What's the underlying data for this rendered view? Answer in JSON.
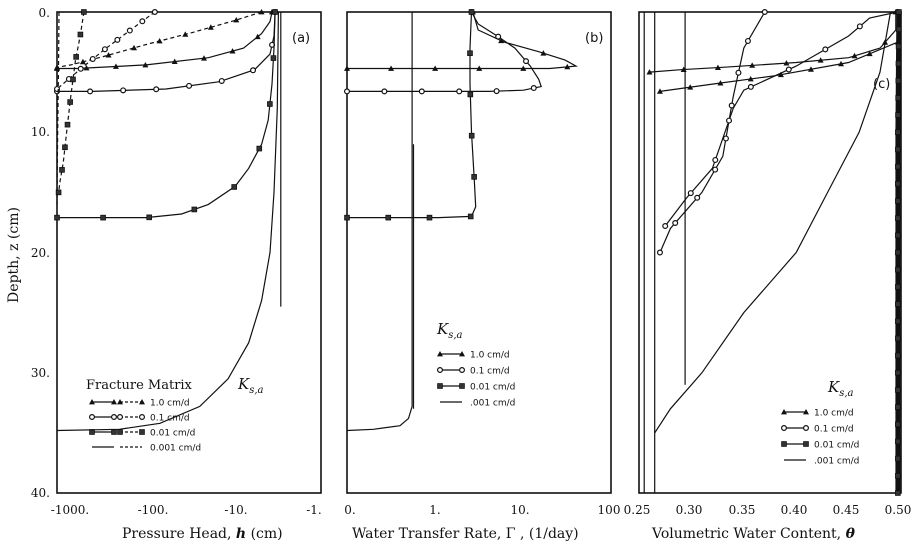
{
  "figure": {
    "y_axis_label": "Depth, z (cm)",
    "y_ticks": [
      "0.",
      "10.",
      "20.",
      "30.",
      "40."
    ],
    "legend_ks": "K",
    "legend_ks_sub": "s,a",
    "legend_fracture_matrix": "Fracture Matrix",
    "legend_entries": [
      "1.0 cm/d",
      "0.1 cm/d",
      "0.01 cm/d",
      "0.001 cm/d"
    ],
    "legend_entries_short": [
      "1.0 cm/d",
      "0.1 cm/d",
      "0.01 cm/d",
      ".001 cm/d"
    ]
  },
  "chart_data": [
    {
      "type": "line",
      "panel_label": "(a)",
      "xlabel_prefix": "Pressure Head,",
      "xlabel_symbol": "h",
      "xlabel_suffix": "(cm)",
      "ylabel": "Depth, z (cm)",
      "x_tick_labels": [
        "-1000.",
        "-100.",
        "-10.",
        "-1."
      ],
      "x_scale": "symlog-negative",
      "xlim": [
        -1000,
        -1
      ],
      "ylim": [
        0,
        40
      ],
      "series": [
        {
          "name": "1.0 cm/d",
          "role": "fracture",
          "marker": "triangle",
          "style": "solid",
          "points": [
            [
              -3.8,
              0
            ],
            [
              -4,
              0.8
            ],
            [
              -5,
              1.8
            ],
            [
              -8,
              3
            ],
            [
              -20,
              3.8
            ],
            [
              -100,
              4.4
            ],
            [
              -600,
              4.7
            ],
            [
              -1000,
              4.7
            ]
          ]
        },
        {
          "name": "1.0 cm/d",
          "role": "matrix",
          "marker": "triangle",
          "style": "dashed",
          "points": [
            [
              -5,
              0
            ],
            [
              -10,
              0.7
            ],
            [
              -30,
              1.7
            ],
            [
              -100,
              2.7
            ],
            [
              -300,
              3.7
            ],
            [
              -700,
              4.4
            ],
            [
              -1000,
              4.6
            ]
          ]
        },
        {
          "name": "0.1 cm/d",
          "role": "fracture",
          "marker": "circle",
          "style": "solid",
          "points": [
            [
              -3.5,
              0
            ],
            [
              -3.6,
              2
            ],
            [
              -4,
              3.5
            ],
            [
              -6,
              4.8
            ],
            [
              -15,
              5.8
            ],
            [
              -60,
              6.4
            ],
            [
              -400,
              6.6
            ],
            [
              -1000,
              6.6
            ]
          ]
        },
        {
          "name": "0.1 cm/d",
          "role": "matrix",
          "marker": "circle",
          "style": "dashed",
          "points": [
            [
              -80,
              0
            ],
            [
              -150,
              1.5
            ],
            [
              -280,
              3
            ],
            [
              -500,
              4.5
            ],
            [
              -800,
              5.8
            ],
            [
              -1000,
              6.4
            ]
          ]
        },
        {
          "name": "0.01 cm/d",
          "role": "fracture",
          "marker": "square",
          "style": "solid",
          "points": [
            [
              -3.5,
              0
            ],
            [
              -3.6,
              3
            ],
            [
              -3.8,
              6
            ],
            [
              -4.2,
              9
            ],
            [
              -5,
              11
            ],
            [
              -7,
              13
            ],
            [
              -10,
              14.5
            ],
            [
              -20,
              16
            ],
            [
              -40,
              16.8
            ],
            [
              -100,
              17.1
            ],
            [
              -1000,
              17.1
            ]
          ]
        },
        {
          "name": "0.01 cm/d",
          "role": "matrix",
          "marker": "square",
          "style": "dashed",
          "points": [
            [
              -500,
              0
            ],
            [
              -550,
              2
            ],
            [
              -620,
              4
            ],
            [
              -700,
              7
            ],
            [
              -780,
              10
            ],
            [
              -850,
              12.5
            ],
            [
              -920,
              14
            ],
            [
              -960,
              15
            ]
          ]
        },
        {
          "name": "0.001 cm/d",
          "role": "fracture",
          "marker": "none",
          "style": "solid",
          "points": [
            [
              -3,
              0
            ],
            [
              -3,
              24.5
            ]
          ]
        },
        {
          "name": "0.001 cm/d",
          "role": "fracture",
          "marker": "none",
          "style": "solid",
          "points": [
            [
              -3.2,
              0
            ],
            [
              -3.3,
              8
            ],
            [
              -3.6,
              15
            ],
            [
              -4,
              20
            ],
            [
              -5,
              24
            ],
            [
              -7,
              27.5
            ],
            [
              -12,
              30.5
            ],
            [
              -25,
              32.8
            ],
            [
              -70,
              34.2
            ],
            [
              -200,
              34.7
            ],
            [
              -1000,
              34.8
            ]
          ]
        },
        {
          "name": "0.001 cm/d",
          "role": "matrix",
          "marker": "none",
          "style": "dashed",
          "points": [
            [
              -950,
              0
            ],
            [
              -960,
              4
            ],
            [
              -975,
              8
            ],
            [
              -990,
              12
            ],
            [
              -1000,
              16
            ]
          ]
        }
      ]
    },
    {
      "type": "line",
      "panel_label": "(b)",
      "xlabel_prefix": "Water Transfer Rate,",
      "xlabel_symbol": "Γ",
      "xlabel_suffix": ", (1/day)",
      "x_tick_labels": [
        "0.",
        "1.",
        "10.",
        "100"
      ],
      "x_scale": "symlog",
      "xlim": [
        0,
        100
      ],
      "ylim": [
        0,
        40
      ],
      "series": [
        {
          "name": "1.0 cm/d",
          "marker": "triangle",
          "style": "solid",
          "points": [
            [
              2.6,
              0
            ],
            [
              3,
              1.5
            ],
            [
              6,
              2.5
            ],
            [
              15,
              3.3
            ],
            [
              30,
              4
            ],
            [
              40,
              4.5
            ],
            [
              20,
              4.7
            ],
            [
              4,
              4.7
            ],
            [
              0,
              4.7
            ]
          ]
        },
        {
          "name": "0.1 cm/d",
          "marker": "circle",
          "style": "solid",
          "points": [
            [
              2.5,
              0
            ],
            [
              3,
              1
            ],
            [
              5,
              2
            ],
            [
              8,
              3
            ],
            [
              12,
              4.5
            ],
            [
              15,
              5.6
            ],
            [
              16,
              6.2
            ],
            [
              10,
              6.5
            ],
            [
              4,
              6.6
            ],
            [
              0,
              6.6
            ]
          ]
        },
        {
          "name": "0.01 cm/d",
          "marker": "square",
          "style": "solid",
          "points": [
            [
              2.5,
              0
            ],
            [
              2.4,
              3
            ],
            [
              2.4,
              6
            ],
            [
              2.5,
              10
            ],
            [
              2.7,
              14
            ],
            [
              2.8,
              16.2
            ],
            [
              2.5,
              17
            ],
            [
              1,
              17.1
            ],
            [
              0,
              17.1
            ]
          ]
        },
        {
          "name": ".001 cm/d",
          "marker": "none",
          "style": "solid",
          "points": [
            [
              0.45,
              0
            ],
            [
              0.45,
              32.8
            ],
            [
              0.4,
              33.8
            ],
            [
              0.3,
              34.4
            ],
            [
              0.1,
              34.7
            ],
            [
              0,
              34.8
            ]
          ]
        },
        {
          "name": ".001 cm/d",
          "marker": "none",
          "style": "solid",
          "points": [
            [
              0.47,
              11
            ],
            [
              0.47,
              33
            ]
          ]
        }
      ]
    },
    {
      "type": "line",
      "panel_label": "(c)",
      "xlabel_prefix": "Volumetric Water Content,",
      "xlabel_symbol": "θ",
      "xlabel_suffix": "",
      "x_tick_labels": [
        "0.25",
        "0.30",
        "0.35",
        "0.40",
        "0.45",
        "0.50"
      ],
      "xlim": [
        0.25,
        0.5
      ],
      "ylim": [
        0,
        40
      ],
      "series": [
        {
          "name": "1.0 cm/d",
          "marker": "triangle",
          "style": "solid",
          "points": [
            [
              0.495,
              0
            ],
            [
              0.495,
              1.5
            ],
            [
              0.48,
              3
            ],
            [
              0.45,
              3.8
            ],
            [
              0.4,
              4.2
            ],
            [
              0.33,
              4.6
            ],
            [
              0.29,
              4.8
            ],
            [
              0.26,
              5
            ]
          ]
        },
        {
          "name": "1.0 cm/d",
          "marker": "triangle",
          "style": "solid",
          "points": [
            [
              0.497,
              2.5
            ],
            [
              0.45,
              4.2
            ],
            [
              0.38,
              5.3
            ],
            [
              0.32,
              6
            ],
            [
              0.27,
              6.6
            ]
          ]
        },
        {
          "name": "0.1 cm/d",
          "marker": "circle",
          "style": "solid",
          "points": [
            [
              0.37,
              0
            ],
            [
              0.35,
              3
            ],
            [
              0.34,
              7
            ],
            [
              0.33,
              12
            ],
            [
              0.31,
              15
            ],
            [
              0.28,
              18
            ],
            [
              0.27,
              20
            ]
          ]
        },
        {
          "name": "0.1 cm/d",
          "marker": "circle",
          "style": "solid",
          "points": [
            [
              0.497,
              0
            ],
            [
              0.47,
              0.5
            ],
            [
              0.45,
              2
            ],
            [
              0.4,
              4.5
            ],
            [
              0.35,
              6.5
            ],
            [
              0.34,
              8
            ],
            [
              0.32,
              13
            ],
            [
              0.295,
              15.5
            ],
            [
              0.275,
              17.8
            ]
          ]
        },
        {
          "name": "0.01 cm/d",
          "marker": "square",
          "style": "solid",
          "points": [
            [
              0.498,
              0
            ],
            [
              0.497,
              10
            ],
            [
              0.497,
              20
            ],
            [
              0.497,
              30
            ],
            [
              0.497,
              40
            ]
          ]
        },
        {
          "name": ".001 cm/d",
          "marker": "none",
          "style": "solid",
          "points": [
            [
              0.294,
              0
            ],
            [
              0.294,
              31
            ]
          ]
        },
        {
          "name": ".001 cm/d",
          "marker": "none",
          "style": "solid",
          "points": [
            [
              0.265,
              0
            ],
            [
              0.265,
              40
            ]
          ]
        },
        {
          "name": ".001 cm/d",
          "marker": "none",
          "style": "solid",
          "points": [
            [
              0.255,
              0
            ],
            [
              0.255,
              40
            ]
          ]
        },
        {
          "name": ".001 cm/d",
          "marker": "none",
          "style": "solid",
          "points": [
            [
              0.49,
              0
            ],
            [
              0.48,
              5
            ],
            [
              0.46,
              10
            ],
            [
              0.43,
              15
            ],
            [
              0.4,
              20
            ],
            [
              0.35,
              25
            ],
            [
              0.31,
              30
            ],
            [
              0.28,
              33
            ],
            [
              0.265,
              35
            ]
          ]
        }
      ]
    }
  ]
}
